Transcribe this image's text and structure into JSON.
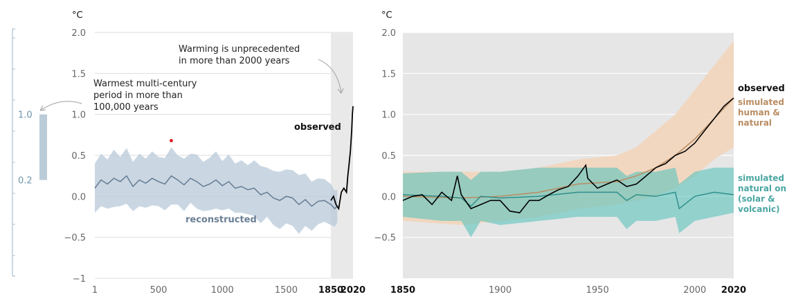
{
  "chart_data": [
    {
      "type": "line",
      "unit_label": "°C",
      "ylim": [
        -1,
        2
      ],
      "yticks": [
        "2.0",
        "1.5",
        "1.0",
        "0.5",
        "0.0",
        "−0.5",
        "−1"
      ],
      "xticks": [
        "1",
        "500",
        "1000",
        "1500",
        "1850",
        "2020"
      ],
      "annotations": {
        "warmest": [
          "Warmest multi-century",
          "period in more than",
          "100,000 years"
        ],
        "unprecedented": [
          "Warming is unprecedented",
          "in more than 2000 years"
        ]
      },
      "series": [
        {
          "name": "reconstructed",
          "x": [
            1,
            50,
            100,
            150,
            200,
            250,
            300,
            350,
            400,
            450,
            500,
            550,
            600,
            650,
            700,
            750,
            800,
            850,
            900,
            950,
            1000,
            1050,
            1100,
            1150,
            1200,
            1250,
            1300,
            1350,
            1400,
            1450,
            1500,
            1550,
            1600,
            1650,
            1700,
            1750,
            1800,
            1850,
            1880,
            1900
          ],
          "values": [
            0.1,
            0.2,
            0.15,
            0.22,
            0.18,
            0.25,
            0.12,
            0.2,
            0.16,
            0.22,
            0.18,
            0.15,
            0.25,
            0.2,
            0.14,
            0.22,
            0.18,
            0.12,
            0.15,
            0.2,
            0.13,
            0.18,
            0.1,
            0.12,
            0.08,
            0.1,
            0.02,
            0.05,
            -0.02,
            -0.05,
            0.0,
            -0.02,
            -0.1,
            -0.04,
            -0.12,
            -0.06,
            -0.05,
            -0.1,
            -0.15,
            -0.12
          ],
          "uncertainty": [
            0.3,
            0.32,
            0.3,
            0.35,
            0.3,
            0.34,
            0.3,
            0.32,
            0.3,
            0.33,
            0.3,
            0.32,
            0.35,
            0.3,
            0.32,
            0.3,
            0.33,
            0.3,
            0.32,
            0.35,
            0.3,
            0.33,
            0.3,
            0.32,
            0.3,
            0.34,
            0.35,
            0.3,
            0.33,
            0.35,
            0.33,
            0.34,
            0.36,
            0.32,
            0.3,
            0.28,
            0.26,
            0.25,
            0.22,
            0.2
          ]
        },
        {
          "name": "observed",
          "x": [
            1850,
            1870,
            1890,
            1910,
            1930,
            1950,
            1970,
            1980,
            1990,
            2000,
            2010,
            2015,
            2020
          ],
          "values": [
            -0.05,
            0.0,
            -0.1,
            -0.15,
            0.05,
            0.1,
            0.05,
            0.25,
            0.4,
            0.55,
            0.8,
            1.0,
            1.1
          ]
        }
      ],
      "proxy_scale": {
        "top": "1.0",
        "bottom": "0.2",
        "top_value": 1.0,
        "bottom_value": 0.2
      },
      "highlight_point": {
        "x": 600,
        "y": 0.68
      },
      "colors": {
        "reconstructed": "#6a7f95",
        "band": "#b8c9d9",
        "observed": "#000000",
        "shade": "#e9e9e9",
        "marker": "#e31a1c",
        "scale": "#b9ccd8"
      }
    },
    {
      "type": "line",
      "unit_label": "°C",
      "ylim": [
        -1,
        2
      ],
      "yticks": [
        "2.0",
        "1.5",
        "1.0",
        "0.5",
        "0.0",
        "−0.5"
      ],
      "xlim": [
        1850,
        2020
      ],
      "xticks": [
        "1850",
        "1900",
        "1950",
        "2000",
        "2020"
      ],
      "labels": {
        "observed": "observed",
        "human": [
          "simulated",
          "human &",
          "natural"
        ],
        "natural": [
          "simulated",
          "natural only",
          "(solar &",
          "volcanic)"
        ]
      },
      "series": [
        {
          "name": "observed",
          "x": [
            1850,
            1855,
            1860,
            1865,
            1870,
            1875,
            1878,
            1880,
            1885,
            1890,
            1895,
            1900,
            1905,
            1910,
            1915,
            1920,
            1925,
            1930,
            1935,
            1940,
            1944,
            1945,
            1950,
            1955,
            1960,
            1965,
            1970,
            1975,
            1980,
            1985,
            1990,
            1995,
            2000,
            2005,
            2010,
            2015,
            2020
          ],
          "values": [
            -0.05,
            0.0,
            0.02,
            -0.1,
            0.05,
            -0.05,
            0.25,
            0.02,
            -0.15,
            -0.1,
            -0.05,
            -0.05,
            -0.18,
            -0.2,
            -0.05,
            -0.05,
            0.02,
            0.08,
            0.12,
            0.25,
            0.38,
            0.22,
            0.1,
            0.15,
            0.2,
            0.12,
            0.15,
            0.25,
            0.35,
            0.4,
            0.5,
            0.55,
            0.65,
            0.8,
            0.95,
            1.1,
            1.2
          ]
        },
        {
          "name": "simulated human & natural",
          "x": [
            1850,
            1880,
            1900,
            1920,
            1940,
            1960,
            1970,
            1980,
            1990,
            2000,
            2010,
            2020
          ],
          "values": [
            0.0,
            -0.02,
            0.0,
            0.05,
            0.15,
            0.18,
            0.25,
            0.35,
            0.5,
            0.7,
            0.95,
            1.2
          ],
          "low": [
            -0.3,
            -0.35,
            -0.3,
            -0.25,
            -0.15,
            -0.1,
            -0.05,
            0.0,
            0.1,
            0.25,
            0.45,
            0.6
          ],
          "high": [
            0.3,
            0.3,
            0.3,
            0.35,
            0.45,
            0.5,
            0.6,
            0.8,
            1.0,
            1.3,
            1.6,
            1.9
          ]
        },
        {
          "name": "simulated natural only (solar & volcanic)",
          "x": [
            1850,
            1870,
            1880,
            1885,
            1890,
            1900,
            1920,
            1940,
            1960,
            1965,
            1970,
            1980,
            1990,
            1992,
            2000,
            2010,
            2020
          ],
          "values": [
            0.02,
            0.0,
            -0.02,
            -0.12,
            0.0,
            -0.02,
            0.0,
            0.05,
            0.05,
            -0.05,
            0.02,
            0.0,
            0.05,
            -0.15,
            0.0,
            0.05,
            0.02
          ],
          "low": [
            -0.25,
            -0.3,
            -0.3,
            -0.5,
            -0.3,
            -0.35,
            -0.3,
            -0.25,
            -0.25,
            -0.4,
            -0.3,
            -0.3,
            -0.25,
            -0.45,
            -0.3,
            -0.25,
            -0.2
          ],
          "high": [
            0.28,
            0.3,
            0.3,
            0.2,
            0.3,
            0.3,
            0.35,
            0.35,
            0.35,
            0.25,
            0.3,
            0.3,
            0.35,
            0.15,
            0.3,
            0.35,
            0.35
          ]
        }
      ],
      "colors": {
        "observed": "#000000",
        "human": "#b98c62",
        "human_band": "#f2d3b8",
        "natural": "#2f8f8b",
        "natural_band": "#5cc3bd",
        "background": "#e6e6e6"
      }
    }
  ]
}
